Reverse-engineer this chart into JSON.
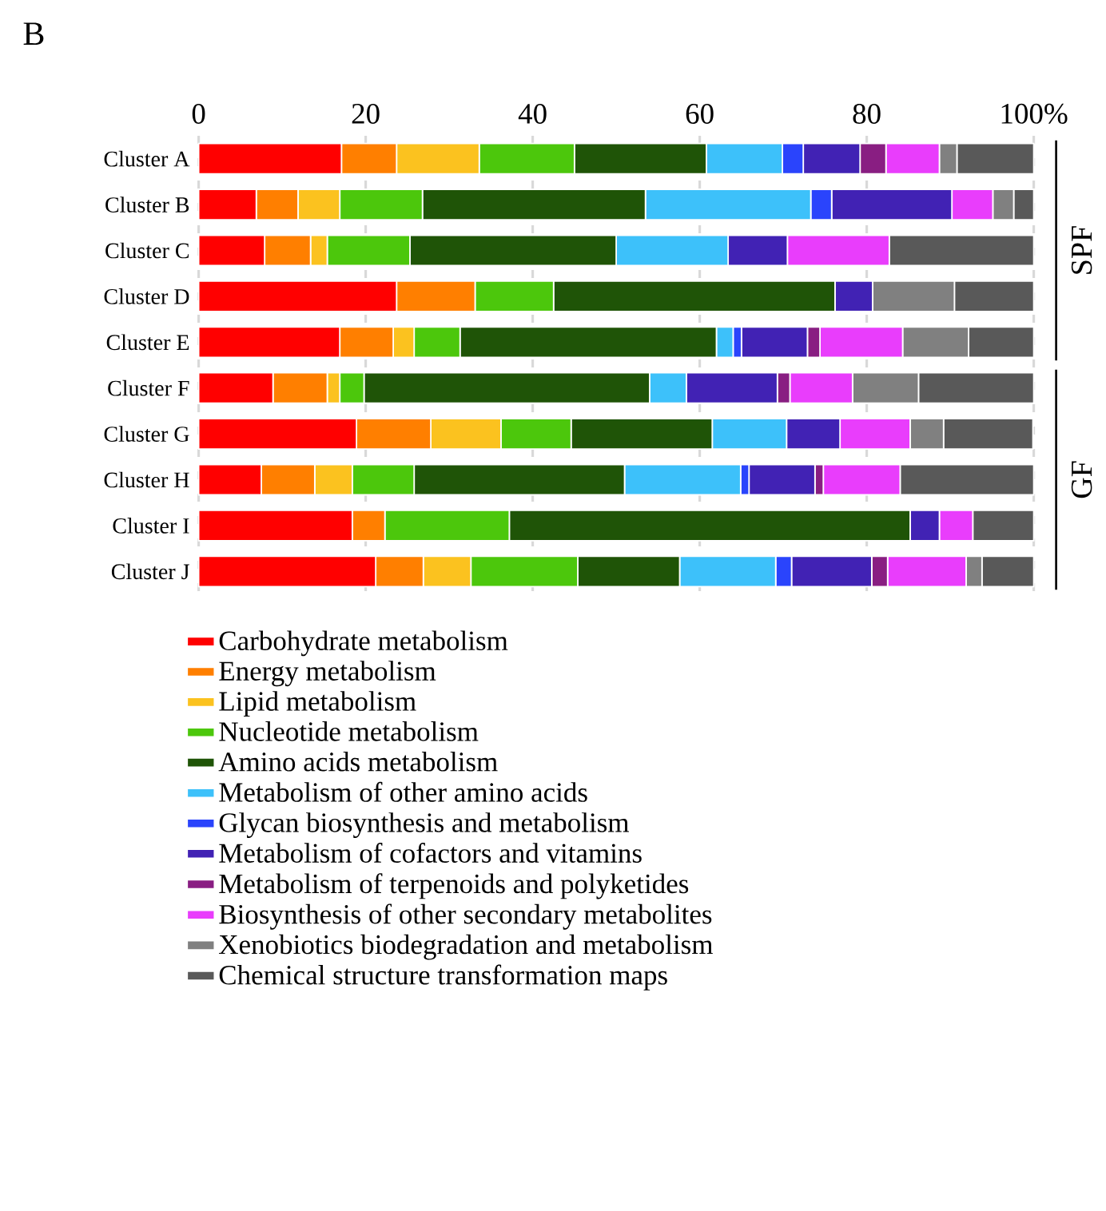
{
  "chart_data": {
    "type": "bar",
    "orientation": "horizontal",
    "stacked": true,
    "title": "B",
    "categories": [
      "Cluster A",
      "Cluster B",
      "Cluster C",
      "Cluster D",
      "Cluster E",
      "Cluster F",
      "Cluster G",
      "Cluster H",
      "Cluster I",
      "Cluster J"
    ],
    "series": [
      {
        "name": "Carbohydrate metabolism",
        "color": "#ff0000",
        "values": [
          17.1,
          6.9,
          7.9,
          23.7,
          16.9,
          8.9,
          18.9,
          7.5,
          18.4,
          21.2
        ]
      },
      {
        "name": "Energy metabolism",
        "color": "#ff7f00",
        "values": [
          6.6,
          5.0,
          5.5,
          9.4,
          6.4,
          6.5,
          8.9,
          6.4,
          3.9,
          5.7
        ]
      },
      {
        "name": "Lipid metabolism",
        "color": "#fbc21f",
        "values": [
          9.9,
          5.0,
          2.0,
          0,
          2.5,
          1.5,
          8.4,
          4.5,
          0,
          5.7
        ]
      },
      {
        "name": "Nucleotide metabolism",
        "color": "#4cc70c",
        "values": [
          11.4,
          9.9,
          9.9,
          9.4,
          5.5,
          2.9,
          8.4,
          7.4,
          14.9,
          12.8
        ]
      },
      {
        "name": "Amino acids metabolism",
        "color": "#1f5407",
        "values": [
          15.8,
          26.7,
          24.7,
          33.7,
          30.7,
          34.2,
          16.9,
          25.2,
          48.0,
          12.2
        ]
      },
      {
        "name": "Metabolism of other amino acids",
        "color": "#3dc1fa",
        "values": [
          9.1,
          19.8,
          13.4,
          0,
          2.0,
          4.4,
          8.9,
          13.9,
          0,
          11.5
        ]
      },
      {
        "name": "Glycan biosynthesis and metabolism",
        "color": "#2a44fc",
        "values": [
          2.5,
          2.5,
          0,
          0,
          1.0,
          0,
          0,
          1.0,
          0,
          1.9
        ]
      },
      {
        "name": "Metabolism of cofactors and vitamins",
        "color": "#4122b4",
        "values": [
          6.8,
          14.4,
          7.1,
          4.5,
          7.9,
          10.9,
          6.4,
          7.9,
          3.5,
          9.6
        ]
      },
      {
        "name": "Metabolism of terpenoids and polyketides",
        "color": "#891e82",
        "values": [
          3.1,
          0,
          0,
          0,
          1.5,
          1.5,
          0,
          1.0,
          0,
          1.9
        ]
      },
      {
        "name": "Biosynthesis of other secondary metabolites",
        "color": "#e93dfc",
        "values": [
          6.4,
          4.9,
          12.2,
          0,
          9.9,
          7.5,
          8.4,
          9.2,
          4.0,
          9.4
        ]
      },
      {
        "name": "Xenobiotics biodegradation and metabolism",
        "color": "#808080",
        "values": [
          2.1,
          2.5,
          0,
          9.8,
          7.9,
          7.9,
          4.0,
          0,
          0,
          1.9
        ]
      },
      {
        "name": "Chemical structure transformation maps",
        "color": "#595959",
        "values": [
          9.2,
          2.4,
          17.3,
          9.5,
          7.8,
          13.8,
          10.7,
          16.0,
          7.3,
          6.2
        ]
      }
    ],
    "xlim": [
      0,
      100
    ],
    "xticks": [
      0,
      20,
      40,
      60,
      80,
      {
        "value": 100,
        "label": "100%"
      }
    ],
    "grid": "x",
    "legend": "bottom",
    "annotations": [
      "SPF",
      "GF"
    ]
  }
}
